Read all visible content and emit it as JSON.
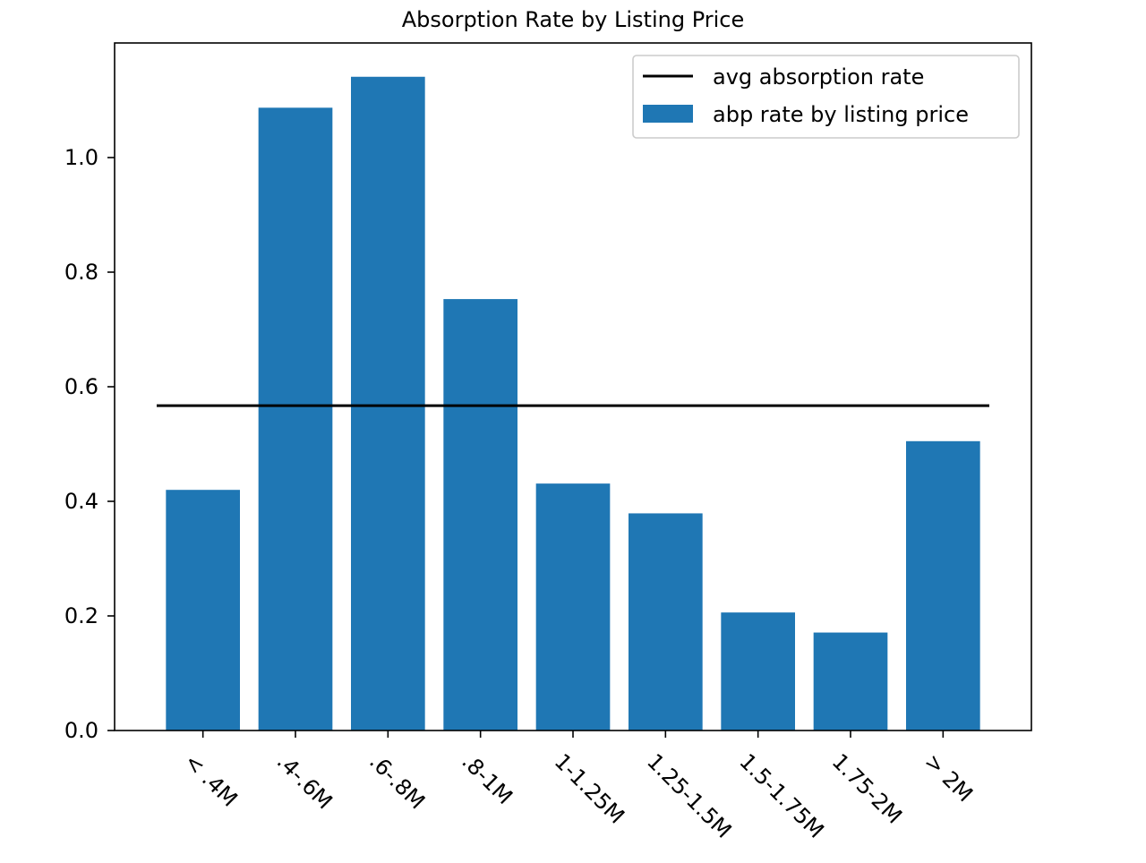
{
  "chart_data": {
    "type": "bar",
    "title": "Absorption Rate by Listing Price",
    "xlabel": "",
    "ylabel": "",
    "categories": [
      "< .4M",
      ".4-.6M",
      ".6-.8M",
      ".8-1M",
      "1-1.25M",
      "1.25-1.5M",
      "1.5-1.75M",
      "1.75-2M",
      "> 2M"
    ],
    "series": [
      {
        "name": "abp rate by listing price",
        "color": "#1f77b4",
        "values": [
          0.42,
          1.087,
          1.141,
          0.753,
          0.431,
          0.379,
          0.206,
          0.171,
          0.505
        ]
      }
    ],
    "reference_lines": [
      {
        "name": "avg absorption rate",
        "value": 0.567,
        "color": "#000000"
      }
    ],
    "ylim": [
      0,
      1.2
    ],
    "yticks": [
      0.0,
      0.2,
      0.4,
      0.6,
      0.8,
      1.0
    ],
    "ytick_labels": [
      "0.0",
      "0.2",
      "0.4",
      "0.6",
      "0.8",
      "1.0"
    ],
    "grid": false,
    "legend_position": "top-right",
    "xtick_rotation_deg": 45
  }
}
